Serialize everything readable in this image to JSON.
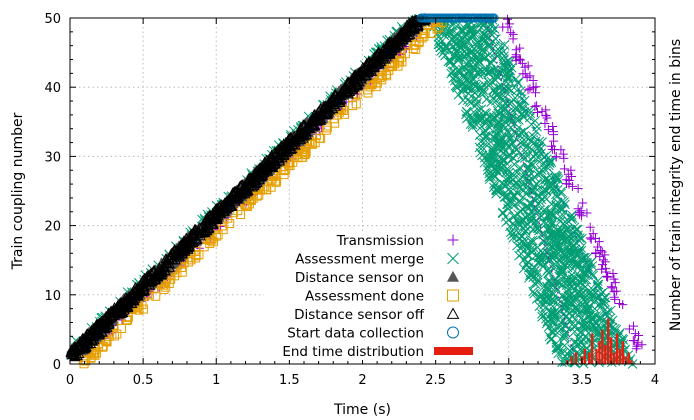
{
  "chart_data": {
    "type": "scatter",
    "title": "",
    "xlabel": "Time (s)",
    "ylabel": "Train coupling number",
    "y2label": "Number of train integrity end time in bins",
    "xlim": [
      0,
      4
    ],
    "ylim": [
      0,
      50
    ],
    "x_ticks": [
      "0",
      "0.5",
      "1",
      "1.5",
      "2",
      "2.5",
      "3",
      "3.5",
      "4"
    ],
    "y_ticks": [
      "0",
      "10",
      "20",
      "30",
      "40",
      "50"
    ],
    "grid": true,
    "legend_position": "bottom-center",
    "series": [
      {
        "name": "Transmission",
        "marker": "plus",
        "color": "#9400d3",
        "ramp_up": {
          "start": [
            0.0,
            1
          ],
          "end": [
            2.4,
            50
          ],
          "spread_x": 0.12
        },
        "ramp_down": {
          "start": [
            2.95,
            50
          ],
          "end": [
            3.9,
            1
          ],
          "spread_x": 0.07
        }
      },
      {
        "name": "Assessment merge",
        "marker": "x",
        "color": "#009e73",
        "ramp_up": {
          "start": [
            0.0,
            1
          ],
          "end": [
            2.4,
            50
          ],
          "spread_x": 0.1
        },
        "ramp_down_band": {
          "x_start": [
            2.45,
            2.9
          ],
          "y_start": 50,
          "x_end": [
            3.35,
            3.85
          ],
          "y_end": 0
        }
      },
      {
        "name": "Distance sensor on",
        "marker": "triangle-filled",
        "color": "#555555",
        "ramp_up": {
          "start": [
            0.0,
            1
          ],
          "end": [
            2.4,
            50
          ],
          "spread_x": 0.1
        }
      },
      {
        "name": "Assessment done",
        "marker": "square",
        "color": "#e69f00",
        "ramp_up": {
          "start": [
            0.02,
            0
          ],
          "end": [
            2.5,
            50
          ],
          "spread_x": 0.1
        }
      },
      {
        "name": "Distance sensor off",
        "marker": "triangle",
        "color": "#000000",
        "ramp_up": {
          "start": [
            0.0,
            1
          ],
          "end": [
            2.4,
            50
          ],
          "spread_x": 0.1
        }
      },
      {
        "name": "Start data collection",
        "marker": "circle",
        "color": "#0072b2",
        "plateau": {
          "x": [
            2.4,
            2.9
          ],
          "y": 50
        }
      },
      {
        "name": "End time distribution",
        "marker": "bar",
        "color": "#e51e10",
        "x": [
          3.4,
          3.43,
          3.46,
          3.5,
          3.52,
          3.55,
          3.57,
          3.6,
          3.62,
          3.64,
          3.66,
          3.68,
          3.7,
          3.72,
          3.74,
          3.76,
          3.78,
          3.8,
          3.82,
          3.84
        ],
        "values": [
          1,
          2,
          3,
          2,
          4,
          3,
          8,
          4,
          6,
          9,
          5,
          12,
          7,
          3,
          8,
          4,
          6,
          2,
          3,
          1
        ]
      }
    ]
  }
}
